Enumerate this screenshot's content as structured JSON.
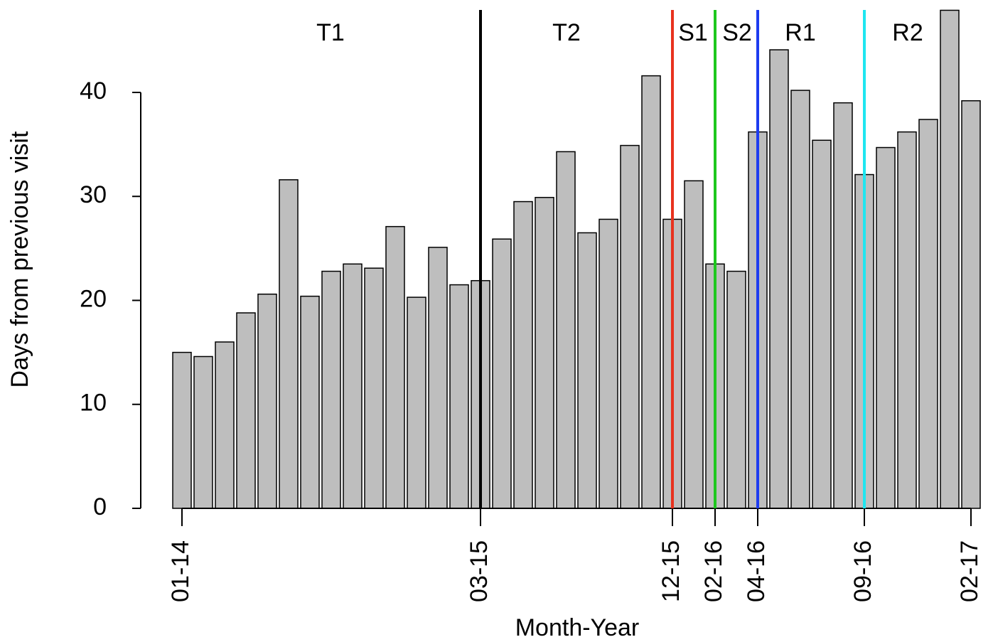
{
  "chart_data": {
    "type": "bar",
    "y_label": "Days from previous visit",
    "x_label": "Month-Year",
    "categories": [
      "01-14",
      null,
      null,
      null,
      null,
      null,
      null,
      null,
      null,
      null,
      null,
      null,
      null,
      null,
      "03-15",
      null,
      null,
      null,
      null,
      null,
      null,
      null,
      null,
      "12-15",
      null,
      "02-16",
      null,
      "04-16",
      null,
      null,
      null,
      null,
      "09-16",
      null,
      null,
      null,
      null,
      "02-17"
    ],
    "values": [
      15.0,
      14.6,
      16.0,
      18.8,
      20.6,
      31.6,
      20.4,
      22.8,
      23.5,
      23.1,
      27.1,
      20.3,
      25.1,
      21.5,
      21.9,
      25.9,
      29.5,
      29.9,
      34.3,
      26.5,
      27.8,
      34.9,
      41.6,
      27.8,
      31.5,
      23.5,
      22.8,
      36.2,
      44.1,
      40.2,
      35.4,
      39.0,
      32.1,
      34.7,
      36.2,
      37.4,
      47.9,
      39.2
    ],
    "color": "#bebebe",
    "ylim": [
      0,
      48
    ],
    "yticks": [
      0,
      10,
      20,
      30,
      40
    ],
    "boundaries": [
      {
        "index": 14,
        "color": "#000000"
      },
      {
        "index": 23,
        "color": "#e8321e"
      },
      {
        "index": 25,
        "color": "#1ec81e"
      },
      {
        "index": 27,
        "color": "#1e3cf0"
      },
      {
        "index": 32,
        "color": "#1ee6f0"
      }
    ],
    "phases": [
      "T1",
      "T2",
      "S1",
      "S2",
      "R1",
      "R2"
    ]
  }
}
